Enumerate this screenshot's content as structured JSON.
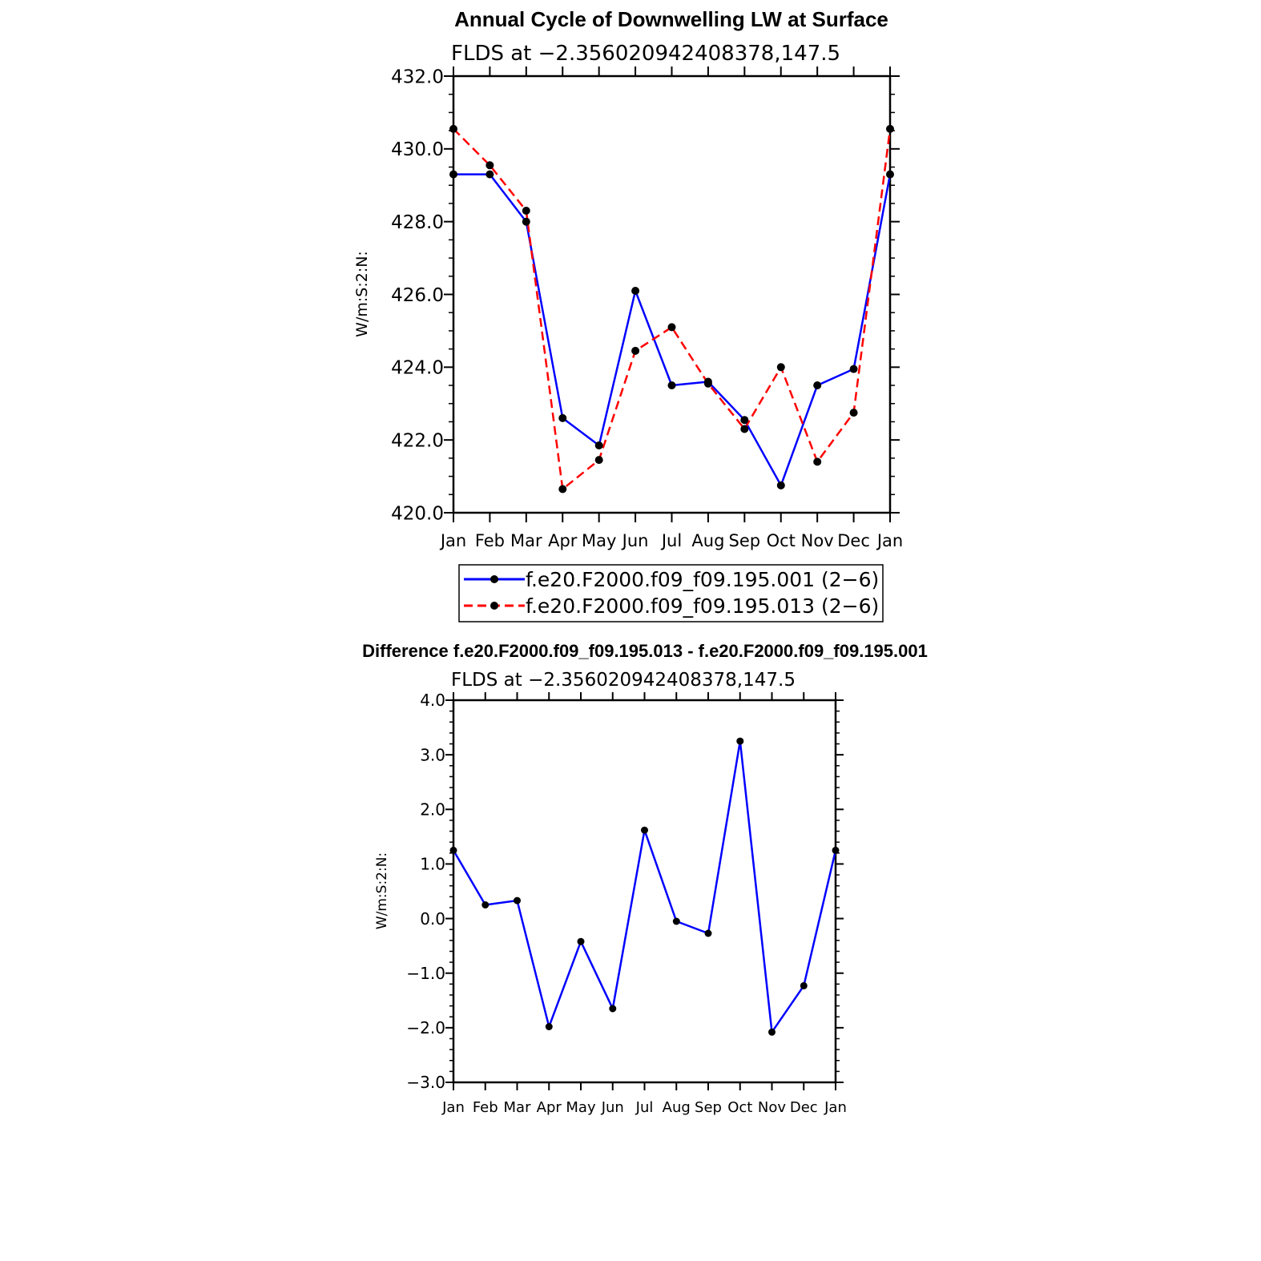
{
  "chart_data": [
    {
      "type": "line",
      "title": "Annual Cycle of Downwelling LW at Surface",
      "subtitle": "FLDS at −2.356020942408378,147.5",
      "ylabel": "W/m:S:2:N:",
      "xlabel": "",
      "categories": [
        "Jan",
        "Feb",
        "Mar",
        "Apr",
        "May",
        "Jun",
        "Jul",
        "Aug",
        "Sep",
        "Oct",
        "Nov",
        "Dec",
        "Jan"
      ],
      "ylim": [
        420.0,
        432.0
      ],
      "yticks": [
        "420.0",
        "422.0",
        "424.0",
        "426.0",
        "428.0",
        "430.0",
        "432.0"
      ],
      "grid": false,
      "legend": "below",
      "series": [
        {
          "name": "f.e20.F2000.f09_f09.195.001 (2−6)",
          "color": "#0000ff",
          "dash": "solid",
          "values": [
            429.3,
            429.3,
            428.0,
            422.6,
            421.85,
            426.1,
            423.5,
            423.6,
            422.55,
            420.75,
            423.5,
            423.95,
            429.3
          ]
        },
        {
          "name": "f.e20.F2000.f09_f09.195.013 (2−6)",
          "color": "#ff0000",
          "dash": "dashed",
          "values": [
            430.55,
            429.55,
            428.3,
            420.65,
            421.45,
            424.45,
            425.1,
            423.55,
            422.3,
            424.0,
            421.4,
            422.75,
            430.55
          ]
        }
      ]
    },
    {
      "type": "line",
      "title": "Difference f.e20.F2000.f09_f09.195.013 - f.e20.F2000.f09_f09.195.001",
      "subtitle": "FLDS at −2.356020942408378,147.5",
      "ylabel": "W/m:S:2:N:",
      "xlabel": "",
      "categories": [
        "Jan",
        "Feb",
        "Mar",
        "Apr",
        "May",
        "Jun",
        "Jul",
        "Aug",
        "Sep",
        "Oct",
        "Nov",
        "Dec",
        "Jan"
      ],
      "ylim": [
        -3.0,
        4.0
      ],
      "yticks": [
        "−3.0",
        "−2.0",
        "−1.0",
        "0.0",
        "1.0",
        "2.0",
        "3.0",
        "4.0"
      ],
      "grid": false,
      "series": [
        {
          "color": "#0000ff",
          "dash": "solid",
          "values": [
            1.25,
            0.25,
            0.33,
            -1.98,
            -0.42,
            -1.65,
            1.62,
            -0.05,
            -0.27,
            3.25,
            -2.08,
            -1.23,
            1.25
          ]
        }
      ]
    }
  ]
}
